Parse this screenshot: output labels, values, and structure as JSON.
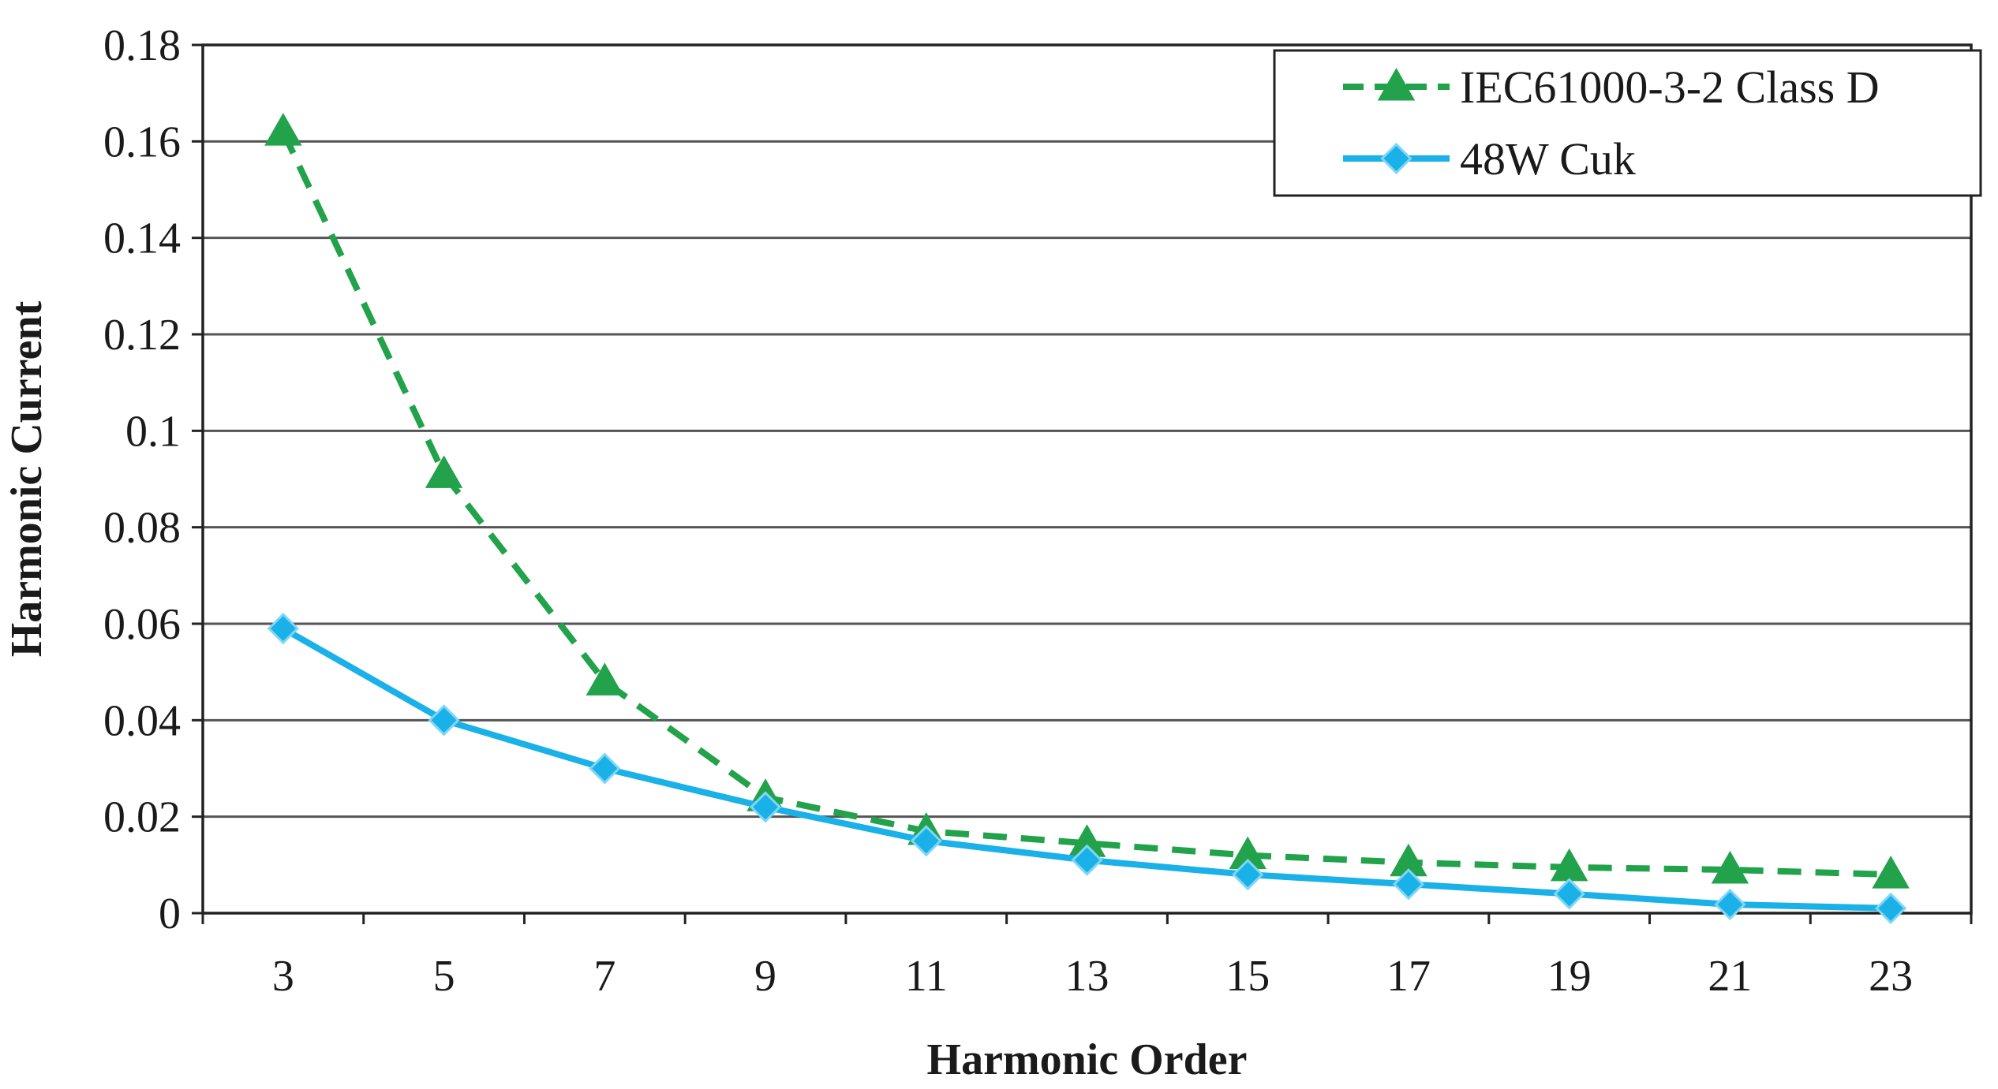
{
  "chart_data": {
    "type": "line",
    "xlabel": "Harmonic Order",
    "ylabel": "Harmonic Current",
    "x": [
      3,
      5,
      7,
      9,
      11,
      13,
      15,
      17,
      19,
      21,
      23
    ],
    "x_ticks": [
      "3",
      "5",
      "7",
      "9",
      "11",
      "13",
      "15",
      "17",
      "19",
      "21",
      "23"
    ],
    "y_ticks": [
      "0",
      "0.02",
      "0.04",
      "0.06",
      "0.08",
      "0.1",
      "0.12",
      "0.14",
      "0.16",
      "0.18"
    ],
    "ylim": [
      0,
      0.18
    ],
    "grid": true,
    "legend_position": "top-right",
    "series": [
      {
        "name": "IEC61000-3-2 Class D",
        "values": [
          0.162,
          0.091,
          0.048,
          0.024,
          0.017,
          0.0145,
          0.012,
          0.0105,
          0.0095,
          0.009,
          0.008
        ],
        "color": "#22a24a",
        "line_style": "dashed",
        "marker": "triangle"
      },
      {
        "name": "48W Cuk",
        "values": [
          0.059,
          0.04,
          0.03,
          0.022,
          0.015,
          0.011,
          0.008,
          0.006,
          0.004,
          0.0018,
          0.001
        ],
        "color": "#1ab0e8",
        "line_style": "solid",
        "marker": "diamond"
      }
    ]
  }
}
